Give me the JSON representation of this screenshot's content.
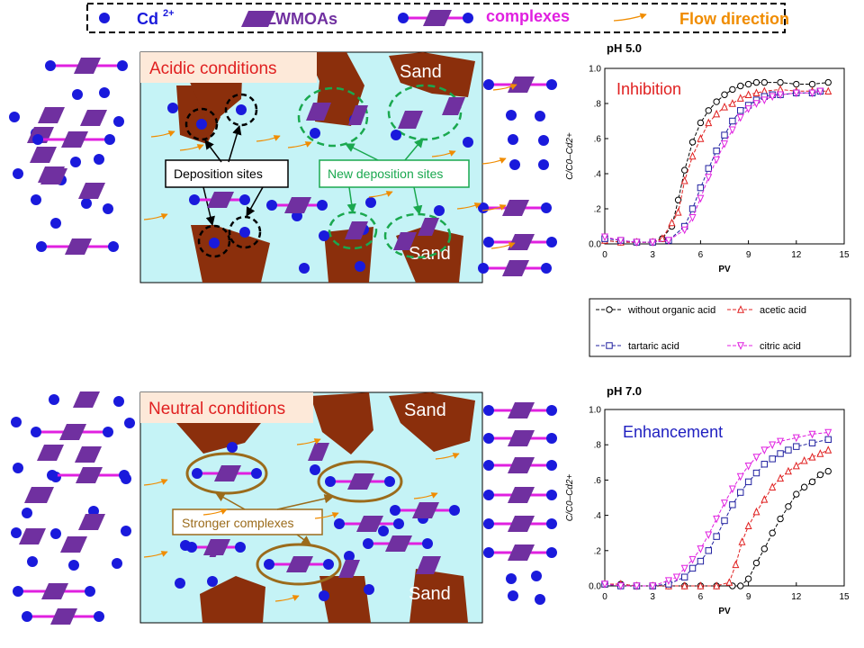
{
  "legend": {
    "cd_label": "Cd",
    "cd_superscript": "2+",
    "lwmoa_label": "LWMOAs",
    "complex_label": "complexes",
    "flow_label": "Flow direction"
  },
  "colors": {
    "cd_ion": "#1a1adc",
    "lwmoa": "#7030a0",
    "complex_bond": "#e020e0",
    "flow": "#f08c00",
    "sand": "#8b2f0c",
    "water": "#c5f3f6",
    "green_site": "#1aa84f",
    "olive": "#9b6b1b",
    "red_text": "#e02020",
    "blue_text": "#2020c0"
  },
  "acidic_panel": {
    "title": "Acidic conditions",
    "sand_label_top": "Sand",
    "sand_label_bottom": "Sand",
    "deposition_label": "Deposition sites",
    "new_deposition_label": "New deposition sites"
  },
  "neutral_panel": {
    "title": "Neutral conditions",
    "sand_label_top": "Sand",
    "sand_label_bottom": "Sand",
    "complex_label": "Stronger complexes"
  },
  "chart_legend": {
    "entries": [
      "without organic acid",
      "acetic acid",
      "tartaric acid",
      "citric acid"
    ]
  },
  "chart_data": [
    {
      "type": "line",
      "title": "pH 5.0",
      "annotation": "Inhibition",
      "xlabel": "PV",
      "ylabel": "C/C0–Cd2+",
      "xlim": [
        0,
        15
      ],
      "ylim": [
        0,
        1.0
      ],
      "xticks": [
        "0",
        "3",
        "6",
        "9",
        "12",
        "15"
      ],
      "yticks": [
        "0.0",
        ".2",
        ".4",
        ".6",
        ".8",
        "1.0"
      ],
      "series": [
        {
          "name": "without organic acid",
          "color": "#000000",
          "marker": "circle",
          "x": [
            0,
            1,
            2,
            3,
            3.6,
            4.2,
            4.6,
            5.0,
            5.5,
            6.0,
            6.5,
            7.0,
            7.5,
            8.0,
            8.5,
            9.0,
            9.5,
            10.0,
            11.0,
            12.0,
            13.0,
            14.0
          ],
          "y": [
            0.02,
            0.01,
            0.01,
            0.01,
            0.03,
            0.1,
            0.25,
            0.42,
            0.58,
            0.69,
            0.76,
            0.81,
            0.85,
            0.88,
            0.9,
            0.91,
            0.92,
            0.92,
            0.92,
            0.91,
            0.91,
            0.92
          ]
        },
        {
          "name": "acetic acid",
          "color": "#e02020",
          "marker": "triangle-up",
          "x": [
            0,
            1,
            2,
            3,
            3.6,
            4.2,
            4.6,
            5.0,
            5.5,
            6.0,
            6.5,
            7.0,
            7.5,
            8.0,
            8.5,
            9.0,
            9.5,
            10.0,
            11.0,
            12.0,
            13.0,
            14.0
          ],
          "y": [
            0.02,
            0.01,
            0.01,
            0.01,
            0.03,
            0.12,
            0.18,
            0.36,
            0.5,
            0.6,
            0.69,
            0.74,
            0.78,
            0.8,
            0.83,
            0.85,
            0.86,
            0.87,
            0.88,
            0.87,
            0.87,
            0.87
          ]
        },
        {
          "name": "tartaric acid",
          "color": "#2020a0",
          "marker": "square",
          "x": [
            0,
            1,
            2,
            3,
            4,
            5.0,
            5.5,
            6.0,
            6.5,
            7.0,
            7.5,
            8.0,
            8.5,
            9.0,
            9.5,
            10.0,
            10.5,
            11.0,
            12.0,
            13.0,
            13.5
          ],
          "y": [
            0.03,
            0.02,
            0.01,
            0.01,
            0.02,
            0.1,
            0.2,
            0.32,
            0.43,
            0.53,
            0.62,
            0.7,
            0.76,
            0.79,
            0.82,
            0.84,
            0.85,
            0.85,
            0.86,
            0.86,
            0.87
          ]
        },
        {
          "name": "citric acid",
          "color": "#e020e0",
          "marker": "triangle-down",
          "x": [
            0,
            1,
            2,
            3,
            4,
            5.0,
            5.5,
            6.0,
            6.5,
            7.0,
            7.5,
            8.0,
            8.5,
            9.0,
            9.5,
            10.0,
            10.5,
            11.0,
            12.0,
            13.0,
            13.5
          ],
          "y": [
            0.04,
            0.02,
            0.01,
            0.01,
            0.02,
            0.08,
            0.15,
            0.26,
            0.38,
            0.48,
            0.57,
            0.65,
            0.72,
            0.77,
            0.8,
            0.82,
            0.84,
            0.85,
            0.86,
            0.86,
            0.87
          ]
        }
      ]
    },
    {
      "type": "line",
      "title": "pH 7.0",
      "annotation": "Enhancement",
      "xlabel": "PV",
      "ylabel": "C/C0–Cd2+",
      "xlim": [
        0,
        15
      ],
      "ylim": [
        0,
        1.0
      ],
      "xticks": [
        "0",
        "3",
        "6",
        "9",
        "12",
        "15"
      ],
      "yticks": [
        "0.0",
        ".2",
        ".4",
        ".6",
        ".8",
        "1.0"
      ],
      "series": [
        {
          "name": "without organic acid",
          "color": "#000000",
          "marker": "circle",
          "x": [
            0,
            1,
            2,
            3,
            4,
            5,
            6,
            7,
            8,
            8.5,
            9.0,
            9.5,
            10.0,
            10.5,
            11.0,
            11.5,
            12.0,
            12.5,
            13.0,
            13.5,
            14.0
          ],
          "y": [
            0.01,
            0.01,
            0.0,
            0.0,
            0.0,
            0.0,
            0.0,
            0.0,
            0.0,
            0.0,
            0.04,
            0.13,
            0.21,
            0.3,
            0.38,
            0.45,
            0.52,
            0.56,
            0.59,
            0.63,
            0.65
          ]
        },
        {
          "name": "acetic acid",
          "color": "#e02020",
          "marker": "triangle-up",
          "x": [
            0,
            1,
            2,
            3,
            4,
            5,
            6,
            7,
            7.8,
            8.2,
            8.6,
            9.0,
            9.5,
            10.0,
            10.5,
            11.0,
            11.5,
            12.0,
            12.5,
            13.0,
            13.5,
            14.0
          ],
          "y": [
            0.01,
            0.01,
            0.0,
            0.0,
            0.0,
            0.0,
            0.0,
            0.0,
            0.02,
            0.12,
            0.25,
            0.34,
            0.42,
            0.49,
            0.56,
            0.61,
            0.65,
            0.68,
            0.71,
            0.73,
            0.75,
            0.77
          ]
        },
        {
          "name": "tartaric acid",
          "color": "#2020a0",
          "marker": "square",
          "x": [
            0,
            1,
            2,
            3,
            4,
            5,
            5.5,
            6.0,
            6.5,
            7.0,
            7.5,
            8.0,
            8.5,
            9.0,
            9.5,
            10.0,
            10.5,
            11.0,
            11.5,
            12.0,
            13.0,
            14.0
          ],
          "y": [
            0.01,
            0.0,
            0.0,
            0.0,
            0.01,
            0.05,
            0.1,
            0.14,
            0.2,
            0.28,
            0.37,
            0.46,
            0.53,
            0.59,
            0.64,
            0.69,
            0.72,
            0.75,
            0.77,
            0.79,
            0.81,
            0.83
          ]
        },
        {
          "name": "citric acid",
          "color": "#e020e0",
          "marker": "triangle-down",
          "x": [
            0,
            1,
            2,
            3,
            4,
            4.5,
            5.0,
            5.5,
            6.0,
            6.5,
            7.0,
            7.5,
            8.0,
            8.5,
            9.0,
            9.5,
            10.0,
            10.5,
            11.0,
            12.0,
            13.0,
            14.0
          ],
          "y": [
            0.01,
            0.0,
            0.0,
            0.0,
            0.03,
            0.05,
            0.1,
            0.15,
            0.21,
            0.29,
            0.38,
            0.47,
            0.55,
            0.62,
            0.68,
            0.73,
            0.77,
            0.8,
            0.82,
            0.84,
            0.86,
            0.87
          ]
        }
      ]
    }
  ]
}
